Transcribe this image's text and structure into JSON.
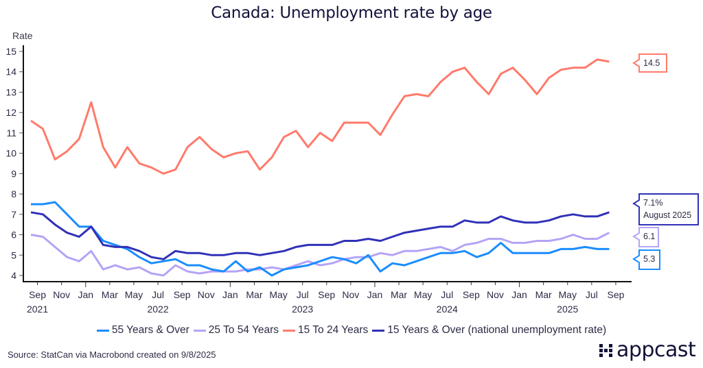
{
  "chart_data": {
    "type": "line",
    "title": "Canada: Unemployment rate by age",
    "ylabel": "Rate",
    "xlabel": "",
    "ylim": [
      4,
      15
    ],
    "yticks": [
      4,
      5,
      6,
      7,
      8,
      9,
      10,
      11,
      12,
      13,
      14,
      15
    ],
    "x_start": "2021-08",
    "x_end": "2025-08",
    "x_months": 49,
    "xticks": [
      {
        "month_index": 1,
        "label": "Sep",
        "year": "2021"
      },
      {
        "month_index": 3,
        "label": "Nov",
        "year": ""
      },
      {
        "month_index": 5,
        "label": "Jan",
        "year": ""
      },
      {
        "month_index": 7,
        "label": "Mar",
        "year": ""
      },
      {
        "month_index": 9,
        "label": "May",
        "year": ""
      },
      {
        "month_index": 11,
        "label": "Jul",
        "year": "2022"
      },
      {
        "month_index": 13,
        "label": "Sep",
        "year": ""
      },
      {
        "month_index": 15,
        "label": "Nov",
        "year": ""
      },
      {
        "month_index": 17,
        "label": "Jan",
        "year": ""
      },
      {
        "month_index": 19,
        "label": "Mar",
        "year": ""
      },
      {
        "month_index": 21,
        "label": "May",
        "year": ""
      },
      {
        "month_index": 23,
        "label": "Jul",
        "year": "2023"
      },
      {
        "month_index": 25,
        "label": "Sep",
        "year": ""
      },
      {
        "month_index": 27,
        "label": "Nov",
        "year": ""
      },
      {
        "month_index": 29,
        "label": "Jan",
        "year": ""
      },
      {
        "month_index": 31,
        "label": "Mar",
        "year": ""
      },
      {
        "month_index": 33,
        "label": "May",
        "year": ""
      },
      {
        "month_index": 35,
        "label": "Jul",
        "year": "2024"
      },
      {
        "month_index": 37,
        "label": "Sep",
        "year": ""
      },
      {
        "month_index": 39,
        "label": "Nov",
        "year": ""
      },
      {
        "month_index": 41,
        "label": "Jan",
        "year": ""
      },
      {
        "month_index": 43,
        "label": "Mar",
        "year": ""
      },
      {
        "month_index": 45,
        "label": "May",
        "year": "2025"
      },
      {
        "month_index": 47,
        "label": "Jul",
        "year": ""
      },
      {
        "month_index": 49,
        "label": "Sep",
        "year": ""
      }
    ],
    "series": [
      {
        "name": "55 Years & Over",
        "color": "#1a8cff",
        "values": [
          7.5,
          7.5,
          7.6,
          7.0,
          6.4,
          6.4,
          5.7,
          5.5,
          5.3,
          4.9,
          4.6,
          4.7,
          4.8,
          4.5,
          4.5,
          4.3,
          4.2,
          4.7,
          4.2,
          4.4,
          4.0,
          4.3,
          4.4,
          4.5,
          4.7,
          4.9,
          4.8,
          4.6,
          5.0,
          4.2,
          4.6,
          4.5,
          4.7,
          4.9,
          5.1,
          5.1,
          5.2,
          4.9,
          5.1,
          5.6,
          5.1,
          5.1,
          5.1,
          5.1,
          5.3,
          5.3,
          5.4,
          5.3,
          5.3
        ],
        "callout": "5.3"
      },
      {
        "name": "25 To 54 Years",
        "color": "#b5a3f7",
        "values": [
          6.0,
          5.9,
          5.4,
          4.9,
          4.7,
          5.2,
          4.3,
          4.5,
          4.3,
          4.4,
          4.1,
          4.0,
          4.5,
          4.2,
          4.1,
          4.2,
          4.2,
          4.2,
          4.3,
          4.3,
          4.4,
          4.3,
          4.5,
          4.7,
          4.5,
          4.6,
          4.8,
          4.9,
          4.9,
          5.1,
          5.0,
          5.2,
          5.2,
          5.3,
          5.4,
          5.2,
          5.5,
          5.6,
          5.8,
          5.8,
          5.6,
          5.6,
          5.7,
          5.7,
          5.8,
          6.0,
          5.8,
          5.8,
          6.1
        ],
        "callout": "6.1"
      },
      {
        "name": "15 To 24 Years",
        "color": "#ff7a6b",
        "values": [
          11.6,
          11.2,
          9.7,
          10.1,
          10.7,
          12.5,
          10.3,
          9.3,
          10.3,
          9.5,
          9.3,
          9.0,
          9.2,
          10.3,
          10.8,
          10.2,
          9.8,
          10.0,
          10.1,
          9.2,
          9.8,
          10.8,
          11.1,
          10.3,
          11.0,
          10.6,
          11.5,
          11.5,
          11.5,
          10.9,
          11.9,
          12.8,
          12.9,
          12.8,
          13.5,
          14.0,
          14.2,
          13.5,
          12.9,
          13.9,
          14.2,
          13.6,
          12.9,
          13.7,
          14.1,
          14.2,
          14.2,
          14.6,
          14.5
        ],
        "callout": "14.5"
      },
      {
        "name": "15 Years & Over (national unemployment rate)",
        "color": "#3030b8",
        "values": [
          7.1,
          7.0,
          6.5,
          6.1,
          5.9,
          6.4,
          5.5,
          5.4,
          5.4,
          5.2,
          4.9,
          4.8,
          5.2,
          5.1,
          5.1,
          5.0,
          5.0,
          5.1,
          5.1,
          5.0,
          5.1,
          5.2,
          5.4,
          5.5,
          5.5,
          5.5,
          5.7,
          5.7,
          5.8,
          5.7,
          5.9,
          6.1,
          6.2,
          6.3,
          6.4,
          6.4,
          6.7,
          6.6,
          6.6,
          6.9,
          6.7,
          6.6,
          6.6,
          6.7,
          6.9,
          7.0,
          6.9,
          6.9,
          7.1
        ],
        "callout": "7.1%",
        "callout_sub": "August 2025"
      }
    ],
    "legend_position": "bottom",
    "grid": false
  },
  "source": "Source: StatCan via Macrobond created on 9/8/2025",
  "logo_text": "appcast"
}
